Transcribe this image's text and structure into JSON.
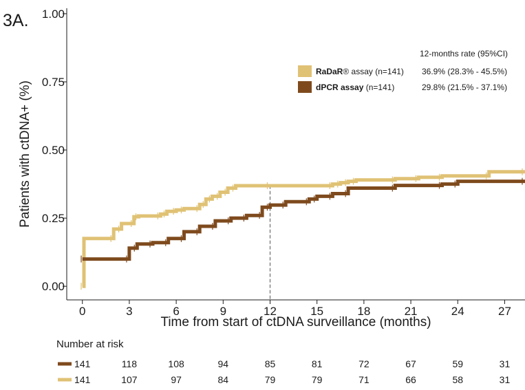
{
  "panel_label": "3A.",
  "chart_data": {
    "type": "line",
    "subtype": "step",
    "xlabel": "Time from start of ctDNA surveillance (months)",
    "ylabel": "Patients with ctDNA+ (%)",
    "xlim": [
      -1,
      28.3
    ],
    "ylim": [
      -0.05,
      1.02
    ],
    "x_ticks": [
      0,
      3,
      6,
      9,
      12,
      15,
      18,
      21,
      24,
      27
    ],
    "y_ticks": [
      0.0,
      0.25,
      0.5,
      0.75,
      1.0
    ],
    "y_tick_labels": [
      "0.00",
      "0.25",
      "0.50",
      "0.75",
      "1.00"
    ],
    "reference_line_x": 12,
    "grid": false,
    "legend_position": "top-right",
    "legend_header": "12-months rate (95%CI)",
    "series": [
      {
        "name": "RaDaR® assay",
        "legend_name": "RaDaR",
        "legend_suffix": "® assay",
        "n_label": "(n=141)",
        "rate_label": "36.9% (28.3% - 45.5%)",
        "color": "#E0C275",
        "x": [
          0,
          0.1,
          2.0,
          2.5,
          3.3,
          3.6,
          5.0,
          5.4,
          6.0,
          6.5,
          7.5,
          7.9,
          8.3,
          8.8,
          9.3,
          9.8,
          12.0,
          16.0,
          16.5,
          17.0,
          17.5,
          20.0,
          21.5,
          23.0,
          26.0,
          28.3
        ],
        "y": [
          0,
          0.175,
          0.21,
          0.23,
          0.255,
          0.258,
          0.265,
          0.275,
          0.28,
          0.285,
          0.3,
          0.32,
          0.33,
          0.345,
          0.36,
          0.369,
          0.369,
          0.375,
          0.38,
          0.385,
          0.39,
          0.395,
          0.4,
          0.405,
          0.42,
          0.42
        ]
      },
      {
        "name": "dPCR assay",
        "legend_name": "dPCR assay",
        "legend_suffix": "",
        "n_label": "(n=141)",
        "rate_label": "29.8% (21.5% - 37.1%)",
        "color": "#7E4A1D",
        "x": [
          0,
          0.1,
          3.0,
          3.5,
          4.5,
          5.5,
          6.5,
          7.5,
          8.5,
          9.5,
          10.5,
          11.5,
          12.0,
          13.0,
          14.5,
          15.0,
          16.0,
          17.0,
          20.0,
          23.0,
          24.0,
          28.3
        ],
        "y": [
          0.1,
          0.1,
          0.14,
          0.155,
          0.16,
          0.175,
          0.2,
          0.22,
          0.24,
          0.25,
          0.26,
          0.29,
          0.298,
          0.31,
          0.32,
          0.33,
          0.34,
          0.36,
          0.37,
          0.375,
          0.385,
          0.385
        ]
      }
    ],
    "risk_table": {
      "title": "Number at risk",
      "times": [
        0,
        3,
        6,
        9,
        12,
        15,
        18,
        21,
        24,
        27
      ],
      "rows": [
        {
          "series": "dPCR assay",
          "color": "#7E4A1D",
          "values": [
            141,
            118,
            108,
            94,
            85,
            81,
            72,
            67,
            59,
            31
          ]
        },
        {
          "series": "RaDaR® assay",
          "color": "#E0C275",
          "values": [
            141,
            107,
            97,
            84,
            79,
            79,
            71,
            66,
            58,
            31
          ]
        }
      ]
    }
  }
}
